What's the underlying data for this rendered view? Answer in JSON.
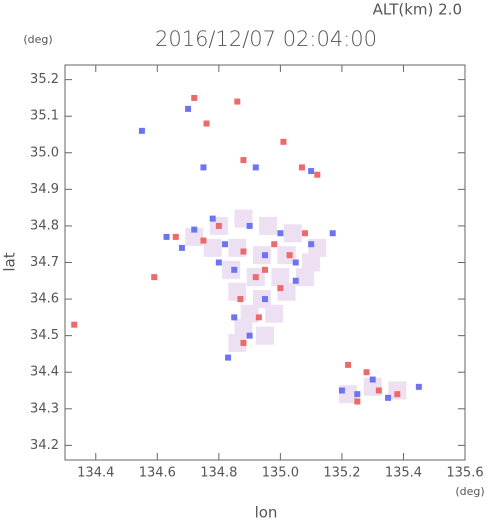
{
  "chart_data": {
    "type": "scatter",
    "title": "2016/12/07 02:04:00",
    "subtitle": "ALT(km)  2.0",
    "y_unit": "(deg)",
    "x_unit": "(deg)",
    "x_label": "lon",
    "y_label": "lat",
    "xlim": [
      134.3,
      135.6
    ],
    "ylim": [
      34.16,
      35.24
    ],
    "xticks": [
      134.4,
      134.6,
      134.8,
      {
        "value": 135.0,
        "label": "135.0"
      },
      135.2,
      135.4,
      135.6
    ],
    "yticks": [
      34.2,
      34.3,
      34.4,
      34.5,
      34.6,
      34.7,
      34.8,
      34.9,
      {
        "value": 35.0,
        "label": "35.0"
      },
      35.1,
      35.2
    ],
    "series": [
      {
        "color": "#ece0f2",
        "x": [
          134.72,
          134.8,
          134.88,
          134.96,
          135.04,
          135.12,
          134.78,
          134.86,
          134.94,
          135.02,
          135.1,
          134.84,
          134.92,
          135.0,
          135.08,
          134.86,
          134.94,
          135.02,
          134.9,
          134.98,
          134.88,
          134.95,
          134.86,
          135.3,
          135.38,
          135.22
        ],
        "y": [
          34.77,
          34.8,
          34.82,
          34.8,
          34.78,
          34.74,
          34.74,
          34.74,
          34.72,
          34.72,
          34.7,
          34.68,
          34.66,
          34.66,
          34.66,
          34.62,
          34.6,
          34.62,
          34.56,
          34.56,
          34.52,
          34.5,
          34.48,
          34.36,
          34.35,
          34.34
        ]
      },
      {
        "color": "#6d74f0",
        "x": [
          134.63,
          134.72,
          134.78,
          134.82,
          134.85,
          134.9,
          134.95,
          135.0,
          135.05,
          135.1,
          134.95,
          134.9,
          134.85,
          135.05,
          134.8,
          135.25,
          135.3,
          135.35,
          135.45,
          135.2,
          134.7,
          134.75,
          134.92,
          135.1,
          134.55,
          134.68,
          135.17,
          134.83
        ],
        "y": [
          34.77,
          34.79,
          34.82,
          34.75,
          34.68,
          34.8,
          34.72,
          34.78,
          34.7,
          34.75,
          34.6,
          34.5,
          34.55,
          34.65,
          34.7,
          34.34,
          34.38,
          34.33,
          34.36,
          34.35,
          35.12,
          34.96,
          34.96,
          34.95,
          35.06,
          34.74,
          34.78,
          34.44
        ]
      },
      {
        "color": "#ee6a6a",
        "x": [
          134.66,
          134.75,
          134.8,
          134.88,
          134.92,
          134.98,
          135.03,
          135.08,
          134.87,
          134.93,
          134.95,
          135.0,
          134.88,
          135.25,
          135.32,
          135.28,
          135.38,
          134.72,
          134.86,
          134.88,
          135.07,
          135.12,
          134.33,
          134.59,
          135.22,
          134.76,
          135.01
        ],
        "y": [
          34.77,
          34.76,
          34.8,
          34.73,
          34.66,
          34.75,
          34.72,
          34.78,
          34.6,
          34.55,
          34.68,
          34.63,
          34.48,
          34.32,
          34.35,
          34.4,
          34.34,
          35.15,
          35.14,
          34.98,
          34.96,
          34.94,
          34.53,
          34.66,
          34.42,
          35.08,
          35.03
        ]
      }
    ]
  }
}
